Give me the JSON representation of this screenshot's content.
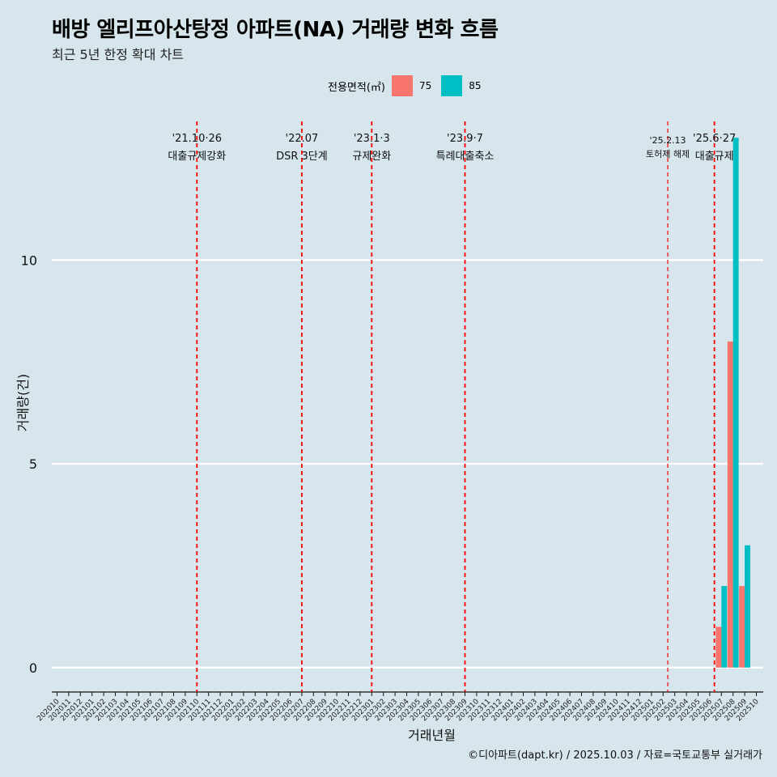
{
  "title": "배방 엘리프아산탕정 아파트(NA) 거래량 변화 흐름",
  "subtitle": "최근 5년 한정 확대 차트",
  "legend": {
    "title": "전용면적(㎡)",
    "items": [
      {
        "label": "75",
        "color": "#f8766d"
      },
      {
        "label": "85",
        "color": "#00bfc4"
      }
    ]
  },
  "caption": "©디아파트(dapt.kr) / 2025.10.03 / 자료=국토교통부 실거래가",
  "chart_data": {
    "type": "bar",
    "xlabel": "거래년월",
    "ylabel": "거래량(건)",
    "ylim": [
      -0.6,
      13.6
    ],
    "yticks": [
      0,
      5,
      10
    ],
    "categories": [
      "202010",
      "202011",
      "202012",
      "202101",
      "202102",
      "202103",
      "202104",
      "202105",
      "202106",
      "202107",
      "202108",
      "202109",
      "202110",
      "202111",
      "202112",
      "202201",
      "202202",
      "202203",
      "202204",
      "202205",
      "202206",
      "202207",
      "202208",
      "202209",
      "202210",
      "202211",
      "202212",
      "202301",
      "202302",
      "202303",
      "202304",
      "202305",
      "202306",
      "202307",
      "202308",
      "202309",
      "202310",
      "202311",
      "202312",
      "202401",
      "202402",
      "202403",
      "202404",
      "202405",
      "202406",
      "202407",
      "202408",
      "202409",
      "202410",
      "202411",
      "202412",
      "202501",
      "202502",
      "202503",
      "202504",
      "202505",
      "202506",
      "202507",
      "202508",
      "202509",
      "202510"
    ],
    "series": [
      {
        "name": "75",
        "color": "#f8766d",
        "values": {
          "202507": 1,
          "202508": 8,
          "202509": 2
        }
      },
      {
        "name": "85",
        "color": "#00bfc4",
        "values": {
          "202507": 2,
          "202508": 13,
          "202509": 3
        }
      }
    ],
    "events": [
      {
        "date": "'21.10·26",
        "label": "대출규제강화",
        "at": 12.0
      },
      {
        "date": "'22.07",
        "label": "DSR 3단계",
        "at": 21.0
      },
      {
        "date": "'23.1·3",
        "label": "규제완화",
        "at": 27.0
      },
      {
        "date": "'23.9·7",
        "label": "특례대출축소",
        "at": 35.0
      },
      {
        "date": "'25.2.13",
        "label": "토허제 해제",
        "at": 52.4,
        "small": true
      },
      {
        "date": "'25.6·27",
        "label": "대출규제",
        "at": 56.4
      }
    ]
  }
}
